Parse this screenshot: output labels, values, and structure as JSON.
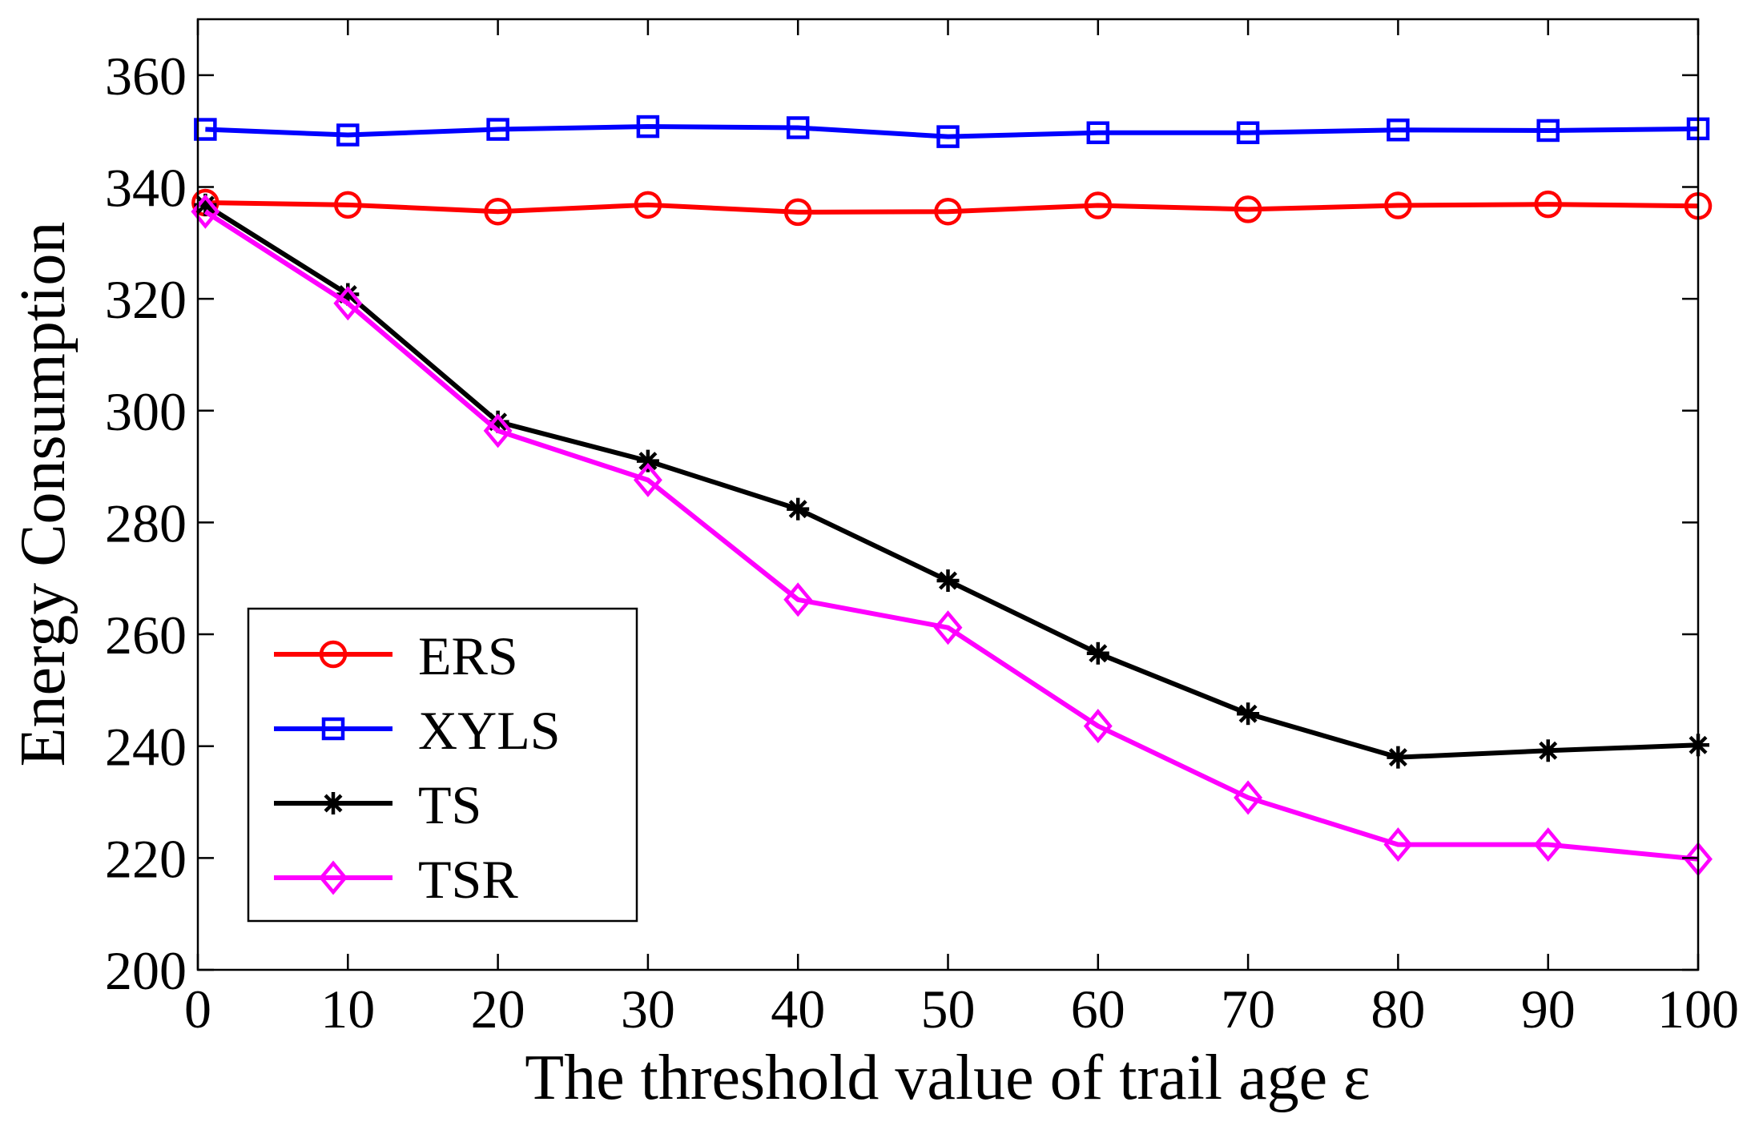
{
  "chart_data": {
    "type": "line",
    "title": "",
    "xlabel": "The threshold value of trail age ε",
    "ylabel": "Energy Consumption",
    "xlim": [
      0,
      100
    ],
    "ylim": [
      200,
      370
    ],
    "xticks": [
      0,
      10,
      20,
      30,
      40,
      50,
      60,
      70,
      80,
      90,
      100
    ],
    "yticks": [
      200,
      220,
      240,
      260,
      280,
      300,
      320,
      340,
      360
    ],
    "grid": false,
    "legend_position": "lower-left",
    "x": [
      0.5,
      10,
      20,
      30,
      40,
      50,
      60,
      70,
      80,
      90,
      100
    ],
    "series": [
      {
        "name": "ERS",
        "color": "#ff0000",
        "marker": "circle",
        "values": [
          337.2,
          336.8,
          335.6,
          336.8,
          335.5,
          335.6,
          336.7,
          336.0,
          336.7,
          336.9,
          336.6
        ]
      },
      {
        "name": "XYLS",
        "color": "#0000ff",
        "marker": "square",
        "values": [
          350.3,
          349.3,
          350.3,
          350.8,
          350.6,
          349.0,
          349.7,
          349.7,
          350.2,
          350.1,
          350.4
        ]
      },
      {
        "name": "TS",
        "color": "#000000",
        "marker": "star",
        "values": [
          336.8,
          320.8,
          298.0,
          291.0,
          282.4,
          269.6,
          256.6,
          245.8,
          238.0,
          239.2,
          240.2
        ]
      },
      {
        "name": "TSR",
        "color": "#ff00ff",
        "marker": "diamond",
        "values": [
          335.6,
          319.2,
          296.4,
          287.6,
          266.2,
          261.2,
          243.6,
          230.8,
          222.4,
          222.4,
          219.8
        ]
      }
    ]
  }
}
